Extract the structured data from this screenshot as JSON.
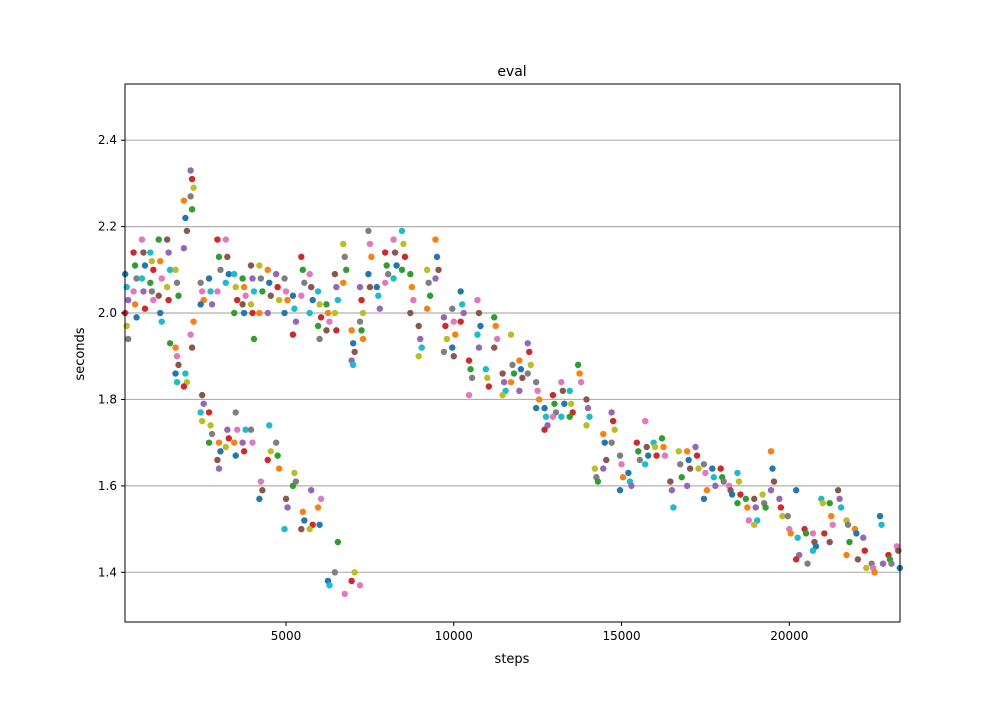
{
  "chart_data": {
    "type": "scatter",
    "title": "eval",
    "xlabel": "steps",
    "ylabel": "seconds",
    "xlim": [
      200,
      23300
    ],
    "ylim": [
      1.285,
      2.53
    ],
    "x_ticks": [
      5000,
      10000,
      15000,
      20000
    ],
    "x_tick_labels": [
      "5000",
      "10000",
      "15000",
      "20000"
    ],
    "y_ticks": [
      1.4,
      1.6,
      1.8,
      2.0,
      2.2,
      2.4
    ],
    "y_tick_labels": [
      "1.4",
      "1.6",
      "1.8",
      "2.0",
      "2.2",
      "2.4"
    ],
    "grid": "horizontal",
    "legend": "none",
    "series_colors": [
      "#1f77b4",
      "#ff7f0e",
      "#2ca02c",
      "#d62728",
      "#9467bd",
      "#8c564b",
      "#e377c2",
      "#7f7f7f",
      "#bcbd22",
      "#17becf"
    ],
    "clusters": [
      {
        "x": 250,
        "ys": [
          2.09,
          2.06,
          2.03,
          2.0,
          1.97,
          1.94
        ]
      },
      {
        "x": 500,
        "ys": [
          2.14,
          2.11,
          2.08,
          2.05,
          2.02,
          1.99
        ]
      },
      {
        "x": 750,
        "ys": [
          2.17,
          2.14,
          2.11,
          2.08,
          2.05,
          2.01
        ]
      },
      {
        "x": 1000,
        "ys": [
          2.14,
          2.12,
          2.1,
          2.07,
          2.05,
          2.03
        ]
      },
      {
        "x": 1250,
        "ys": [
          2.17,
          2.12,
          2.08,
          2.04,
          2.0,
          1.98
        ]
      },
      {
        "x": 1500,
        "ys": [
          2.17,
          2.14,
          2.1,
          2.06,
          2.03,
          1.93
        ]
      },
      {
        "x": 1750,
        "ys": [
          2.1,
          2.07,
          2.04,
          1.92,
          1.9,
          1.88,
          1.86,
          1.84
        ]
      },
      {
        "x": 2000,
        "ys": [
          2.26,
          2.22,
          2.19,
          2.15,
          1.86,
          1.84,
          1.83
        ]
      },
      {
        "x": 2200,
        "ys": [
          2.33,
          2.31,
          2.29,
          2.27,
          2.24,
          1.98,
          1.95,
          1.92
        ]
      },
      {
        "x": 2500,
        "ys": [
          2.07,
          2.05,
          2.03,
          2.02,
          1.81,
          1.79,
          1.77,
          1.75
        ]
      },
      {
        "x": 2750,
        "ys": [
          2.08,
          2.05,
          2.02,
          1.77,
          1.74,
          1.72,
          1.7
        ]
      },
      {
        "x": 3000,
        "ys": [
          2.17,
          2.13,
          2.1,
          2.05,
          1.7,
          1.68,
          1.66,
          1.64
        ]
      },
      {
        "x": 3250,
        "ys": [
          2.17,
          2.13,
          2.09,
          2.07,
          1.73,
          1.71,
          1.69
        ]
      },
      {
        "x": 3500,
        "ys": [
          2.09,
          2.06,
          2.03,
          2.0,
          1.77,
          1.73,
          1.7,
          1.67
        ]
      },
      {
        "x": 3750,
        "ys": [
          2.08,
          2.06,
          2.04,
          2.02,
          2.0,
          1.73,
          1.7,
          1.68
        ]
      },
      {
        "x": 4000,
        "ys": [
          2.11,
          2.08,
          2.05,
          2.02,
          2.0,
          1.94,
          1.73,
          1.7
        ]
      },
      {
        "x": 4250,
        "ys": [
          2.11,
          2.08,
          2.05,
          2.0,
          1.61,
          1.59,
          1.57
        ]
      },
      {
        "x": 4500,
        "ys": [
          2.1,
          2.07,
          2.04,
          2.0,
          1.74,
          1.68,
          1.66
        ]
      },
      {
        "x": 4750,
        "ys": [
          2.09,
          2.06,
          2.03,
          1.7,
          1.67,
          1.64
        ]
      },
      {
        "x": 5000,
        "ys": [
          2.08,
          2.05,
          2.03,
          2.0,
          1.57,
          1.55,
          1.5
        ]
      },
      {
        "x": 5250,
        "ys": [
          2.04,
          2.01,
          1.98,
          1.95,
          1.63,
          1.61,
          1.6
        ]
      },
      {
        "x": 5500,
        "ys": [
          2.13,
          2.1,
          2.07,
          2.04,
          1.54,
          1.52,
          1.5
        ]
      },
      {
        "x": 5750,
        "ys": [
          2.09,
          2.06,
          2.03,
          2.0,
          1.59,
          1.51,
          1.5
        ]
      },
      {
        "x": 6000,
        "ys": [
          2.05,
          2.02,
          1.99,
          1.97,
          1.94,
          1.57,
          1.55,
          1.51
        ]
      },
      {
        "x": 6250,
        "ys": [
          2.02,
          2.0,
          1.98,
          1.96,
          1.38,
          1.37
        ]
      },
      {
        "x": 6500,
        "ys": [
          2.09,
          2.06,
          2.03,
          2.0,
          1.96,
          1.47,
          1.4
        ]
      },
      {
        "x": 6750,
        "ys": [
          2.16,
          2.13,
          2.1,
          2.07,
          1.35
        ]
      },
      {
        "x": 7000,
        "ys": [
          1.96,
          1.93,
          1.91,
          1.89,
          1.88,
          1.4,
          1.38
        ]
      },
      {
        "x": 7250,
        "ys": [
          2.06,
          2.03,
          2.0,
          1.98,
          1.96,
          1.94,
          1.37
        ]
      },
      {
        "x": 7500,
        "ys": [
          2.19,
          2.16,
          2.13,
          2.09,
          2.06
        ]
      },
      {
        "x": 7750,
        "ys": [
          2.06,
          2.04,
          2.01
        ]
      },
      {
        "x": 8000,
        "ys": [
          2.14,
          2.11,
          2.09,
          2.07
        ]
      },
      {
        "x": 8250,
        "ys": [
          2.17,
          2.14,
          2.11,
          2.08
        ]
      },
      {
        "x": 8500,
        "ys": [
          2.19,
          2.16,
          2.13,
          2.1
        ]
      },
      {
        "x": 8750,
        "ys": [
          2.09,
          2.06,
          2.03,
          2.0
        ]
      },
      {
        "x": 9000,
        "ys": [
          1.97,
          1.94,
          1.92,
          1.9
        ]
      },
      {
        "x": 9250,
        "ys": [
          2.1,
          2.07,
          2.04,
          2.01
        ]
      },
      {
        "x": 9500,
        "ys": [
          2.17,
          2.13,
          2.1,
          2.08
        ]
      },
      {
        "x": 9750,
        "ys": [
          1.99,
          1.97,
          1.94,
          1.91
        ]
      },
      {
        "x": 10000,
        "ys": [
          2.01,
          1.98,
          1.95,
          1.92,
          1.9
        ]
      },
      {
        "x": 10250,
        "ys": [
          2.05,
          2.02,
          2.0,
          1.98
        ]
      },
      {
        "x": 10500,
        "ys": [
          1.89,
          1.87,
          1.85,
          1.81
        ]
      },
      {
        "x": 10750,
        "ys": [
          2.03,
          2.0,
          1.97,
          1.95,
          1.92
        ]
      },
      {
        "x": 11000,
        "ys": [
          1.87,
          1.85,
          1.83
        ]
      },
      {
        "x": 11250,
        "ys": [
          1.99,
          1.97,
          1.94,
          1.92
        ]
      },
      {
        "x": 11500,
        "ys": [
          1.86,
          1.84,
          1.82,
          1.81
        ]
      },
      {
        "x": 11750,
        "ys": [
          1.95,
          1.88,
          1.86,
          1.84
        ]
      },
      {
        "x": 12000,
        "ys": [
          1.89,
          1.87,
          1.85,
          1.82
        ]
      },
      {
        "x": 12250,
        "ys": [
          1.93,
          1.91,
          1.88,
          1.86
        ]
      },
      {
        "x": 12500,
        "ys": [
          1.84,
          1.82,
          1.8,
          1.78
        ]
      },
      {
        "x": 12750,
        "ys": [
          1.78,
          1.76,
          1.74,
          1.73
        ]
      },
      {
        "x": 13000,
        "ys": [
          1.81,
          1.79,
          1.77,
          1.76
        ]
      },
      {
        "x": 13250,
        "ys": [
          1.84,
          1.82,
          1.79,
          1.76
        ]
      },
      {
        "x": 13500,
        "ys": [
          1.82,
          1.79,
          1.77,
          1.76
        ]
      },
      {
        "x": 13750,
        "ys": [
          1.88,
          1.86,
          1.84
        ]
      },
      {
        "x": 14000,
        "ys": [
          1.8,
          1.78,
          1.76,
          1.74
        ]
      },
      {
        "x": 14250,
        "ys": [
          1.64,
          1.62,
          1.61
        ]
      },
      {
        "x": 14500,
        "ys": [
          1.72,
          1.7,
          1.66,
          1.64
        ]
      },
      {
        "x": 14750,
        "ys": [
          1.77,
          1.75,
          1.73,
          1.7
        ]
      },
      {
        "x": 15000,
        "ys": [
          1.67,
          1.65,
          1.62,
          1.59
        ]
      },
      {
        "x": 15250,
        "ys": [
          1.63,
          1.61,
          1.6
        ]
      },
      {
        "x": 15500,
        "ys": [
          1.7,
          1.68,
          1.66
        ]
      },
      {
        "x": 15750,
        "ys": [
          1.75,
          1.69,
          1.67,
          1.65
        ]
      },
      {
        "x": 16000,
        "ys": [
          1.7,
          1.69,
          1.67
        ]
      },
      {
        "x": 16250,
        "ys": [
          1.71,
          1.69,
          1.67
        ]
      },
      {
        "x": 16500,
        "ys": [
          1.61,
          1.59,
          1.55
        ]
      },
      {
        "x": 16750,
        "ys": [
          1.68,
          1.65,
          1.62
        ]
      },
      {
        "x": 17000,
        "ys": [
          1.68,
          1.66,
          1.64,
          1.6
        ]
      },
      {
        "x": 17250,
        "ys": [
          1.69,
          1.67,
          1.64
        ]
      },
      {
        "x": 17500,
        "ys": [
          1.65,
          1.63,
          1.59,
          1.57
        ]
      },
      {
        "x": 17750,
        "ys": [
          1.64,
          1.62,
          1.6
        ]
      },
      {
        "x": 18000,
        "ys": [
          1.64,
          1.62,
          1.61
        ]
      },
      {
        "x": 18250,
        "ys": [
          1.6,
          1.59,
          1.58
        ]
      },
      {
        "x": 18500,
        "ys": [
          1.63,
          1.61,
          1.58,
          1.56
        ]
      },
      {
        "x": 18750,
        "ys": [
          1.57,
          1.55,
          1.52
        ]
      },
      {
        "x": 19000,
        "ys": [
          1.57,
          1.55,
          1.52,
          1.51
        ]
      },
      {
        "x": 19250,
        "ys": [
          1.58,
          1.56,
          1.55
        ]
      },
      {
        "x": 19500,
        "ys": [
          1.68,
          1.64,
          1.61,
          1.59
        ]
      },
      {
        "x": 19750,
        "ys": [
          1.57,
          1.55,
          1.53
        ]
      },
      {
        "x": 20000,
        "ys": [
          1.53,
          1.5,
          1.49
        ]
      },
      {
        "x": 20250,
        "ys": [
          1.59,
          1.48,
          1.44,
          1.43
        ]
      },
      {
        "x": 20500,
        "ys": [
          1.5,
          1.49,
          1.42
        ]
      },
      {
        "x": 20750,
        "ys": [
          1.49,
          1.47,
          1.46,
          1.45
        ]
      },
      {
        "x": 21000,
        "ys": [
          1.57,
          1.56,
          1.49
        ]
      },
      {
        "x": 21250,
        "ys": [
          1.56,
          1.53,
          1.51,
          1.47
        ]
      },
      {
        "x": 21500,
        "ys": [
          1.59,
          1.57,
          1.55
        ]
      },
      {
        "x": 21750,
        "ys": [
          1.52,
          1.51,
          1.47,
          1.44
        ]
      },
      {
        "x": 22000,
        "ys": [
          1.5,
          1.49,
          1.43
        ]
      },
      {
        "x": 22250,
        "ys": [
          1.48,
          1.45,
          1.41
        ]
      },
      {
        "x": 22500,
        "ys": [
          1.42,
          1.41,
          1.4
        ]
      },
      {
        "x": 22750,
        "ys": [
          1.53,
          1.51,
          1.42
        ]
      },
      {
        "x": 23000,
        "ys": [
          1.44,
          1.43,
          1.42
        ]
      },
      {
        "x": 23250,
        "ys": [
          1.46,
          1.45,
          1.41
        ]
      }
    ]
  }
}
